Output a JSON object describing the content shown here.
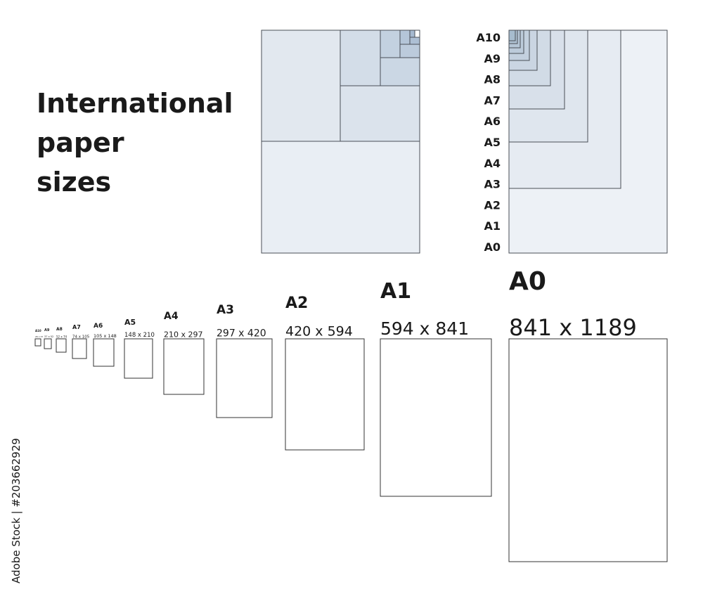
{
  "title": [
    "International",
    "paper",
    "sizes"
  ],
  "stack_labels": [
    "A10",
    "A9",
    "A8",
    "A7",
    "A6",
    "A5",
    "A4",
    "A3",
    "A2",
    "A1",
    "A0"
  ],
  "sizes": [
    {
      "name": "A10",
      "dims": "26 x 37"
    },
    {
      "name": "A9",
      "dims": "37 x 52"
    },
    {
      "name": "A8",
      "dims": "52 x 74"
    },
    {
      "name": "A7",
      "dims": "74 x 105"
    },
    {
      "name": "A6",
      "dims": "105 x 148"
    },
    {
      "name": "A5",
      "dims": "148 x 210"
    },
    {
      "name": "A4",
      "dims": "210 x 297"
    },
    {
      "name": "A3",
      "dims": "297 x 420"
    },
    {
      "name": "A2",
      "dims": "420 x 594"
    },
    {
      "name": "A1",
      "dims": "594 x 841"
    },
    {
      "name": "A0",
      "dims": "841 x 1189"
    }
  ],
  "credit": "Adobe Stock | #203662929"
}
